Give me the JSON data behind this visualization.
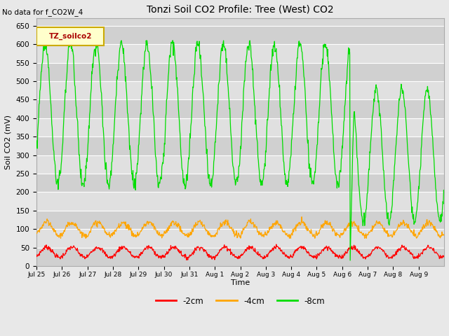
{
  "title": "Tonzi Soil CO2 Profile: Tree (West) CO2",
  "top_left_note": "No data for f_CO2W_4",
  "ylabel": "Soil CO2 (mV)",
  "xlabel": "Time",
  "legend_label": "TZ_soilco2",
  "series_labels": [
    "-2cm",
    "-4cm",
    "-8cm"
  ],
  "series_colors": [
    "#ff0000",
    "#ffa500",
    "#00dd00"
  ],
  "ylim": [
    0,
    670
  ],
  "yticks": [
    0,
    50,
    100,
    150,
    200,
    250,
    300,
    350,
    400,
    450,
    500,
    550,
    600,
    650
  ],
  "plot_bg_color": "#d8d8d8",
  "grid_color": "#ffffff",
  "fig_bg_color": "#e8e8e8",
  "band_colors": [
    "#d0d0d0",
    "#e0e0e0"
  ],
  "n_days": 16,
  "n_points": 960,
  "freq_per_day": 1.0,
  "green_base": 410,
  "green_amp": 190,
  "green_min_before": 200,
  "green_max_before": 610,
  "green_drop_day": 12.3,
  "green_drop_low": 15,
  "green_after_base": 300,
  "green_after_amp": 180,
  "orange_base": 100,
  "orange_amp": 18,
  "orange_min": 75,
  "orange_max": 135,
  "red_base": 37,
  "red_amp": 14,
  "red_min": 15,
  "red_max": 60,
  "tick_labels": [
    "Jul 25",
    "Jul 26",
    "Jul 27",
    "Jul 28",
    "Jul 29",
    "Jul 30",
    "Jul 31",
    "Aug 1",
    "Aug 2",
    "Aug 3",
    "Aug 4",
    "Aug 5",
    "Aug 6",
    "Aug 7",
    "Aug 8",
    "Aug 9"
  ]
}
